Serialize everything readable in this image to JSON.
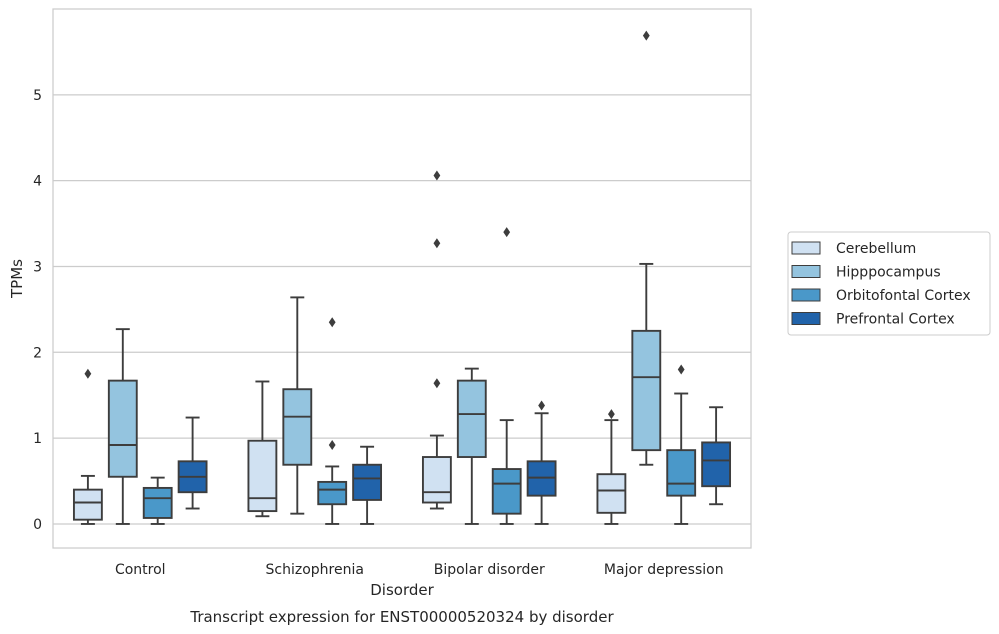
{
  "chart_data": {
    "type": "box",
    "caption": "Transcript expression for ENST00000520324 by disorder",
    "xlabel": "Disorder",
    "ylabel": "TPMs",
    "ylim": [
      -0.28,
      6.0
    ],
    "yticks": [
      0,
      1,
      2,
      3,
      4,
      5
    ],
    "grid": "horizontal",
    "legend_position": "right",
    "categories": [
      "Control",
      "Schizophrenia",
      "Bipolar disorder",
      "Major depression"
    ],
    "series": [
      {
        "name": "Cerebellum",
        "color": "#d0e1f2",
        "boxes": [
          {
            "whislo": 0.0,
            "q1": 0.05,
            "med": 0.25,
            "q3": 0.4,
            "whishi": 0.56,
            "fliers": [
              1.75
            ]
          },
          {
            "whislo": 0.09,
            "q1": 0.15,
            "med": 0.3,
            "q3": 0.97,
            "whishi": 1.66,
            "fliers": []
          },
          {
            "whislo": 0.18,
            "q1": 0.25,
            "med": 0.37,
            "q3": 0.78,
            "whishi": 1.03,
            "fliers": [
              1.64,
              3.27,
              4.06
            ]
          },
          {
            "whislo": 0.0,
            "q1": 0.13,
            "med": 0.39,
            "q3": 0.58,
            "whishi": 1.21,
            "fliers": [
              1.28
            ]
          }
        ]
      },
      {
        "name": "Hipppocampus",
        "color": "#94c4df",
        "boxes": [
          {
            "whislo": 0.0,
            "q1": 0.55,
            "med": 0.92,
            "q3": 1.67,
            "whishi": 2.27,
            "fliers": []
          },
          {
            "whislo": 0.12,
            "q1": 0.69,
            "med": 1.25,
            "q3": 1.57,
            "whishi": 2.64,
            "fliers": []
          },
          {
            "whislo": 0.0,
            "q1": 0.78,
            "med": 1.28,
            "q3": 1.67,
            "whishi": 1.81,
            "fliers": []
          },
          {
            "whislo": 0.69,
            "q1": 0.86,
            "med": 1.71,
            "q3": 2.25,
            "whishi": 3.03,
            "fliers": [
              5.69
            ]
          }
        ]
      },
      {
        "name": "Orbitofontal Cortex",
        "color": "#4a98c9",
        "boxes": [
          {
            "whislo": 0.0,
            "q1": 0.07,
            "med": 0.3,
            "q3": 0.42,
            "whishi": 0.54,
            "fliers": []
          },
          {
            "whislo": 0.0,
            "q1": 0.23,
            "med": 0.4,
            "q3": 0.49,
            "whishi": 0.67,
            "fliers": [
              0.92,
              2.35
            ]
          },
          {
            "whislo": 0.0,
            "q1": 0.12,
            "med": 0.47,
            "q3": 0.64,
            "whishi": 1.21,
            "fliers": [
              3.4
            ]
          },
          {
            "whislo": 0.0,
            "q1": 0.33,
            "med": 0.47,
            "q3": 0.86,
            "whishi": 1.52,
            "fliers": [
              1.8
            ]
          }
        ]
      },
      {
        "name": "Prefrontal Cortex",
        "color": "#2163aa",
        "boxes": [
          {
            "whislo": 0.18,
            "q1": 0.37,
            "med": 0.55,
            "q3": 0.73,
            "whishi": 1.24,
            "fliers": []
          },
          {
            "whislo": 0.0,
            "q1": 0.28,
            "med": 0.53,
            "q3": 0.69,
            "whishi": 0.9,
            "fliers": []
          },
          {
            "whislo": 0.0,
            "q1": 0.33,
            "med": 0.54,
            "q3": 0.73,
            "whishi": 1.29,
            "fliers": [
              1.38
            ]
          },
          {
            "whislo": 0.23,
            "q1": 0.44,
            "med": 0.74,
            "q3": 0.95,
            "whishi": 1.36,
            "fliers": []
          }
        ]
      }
    ]
  }
}
